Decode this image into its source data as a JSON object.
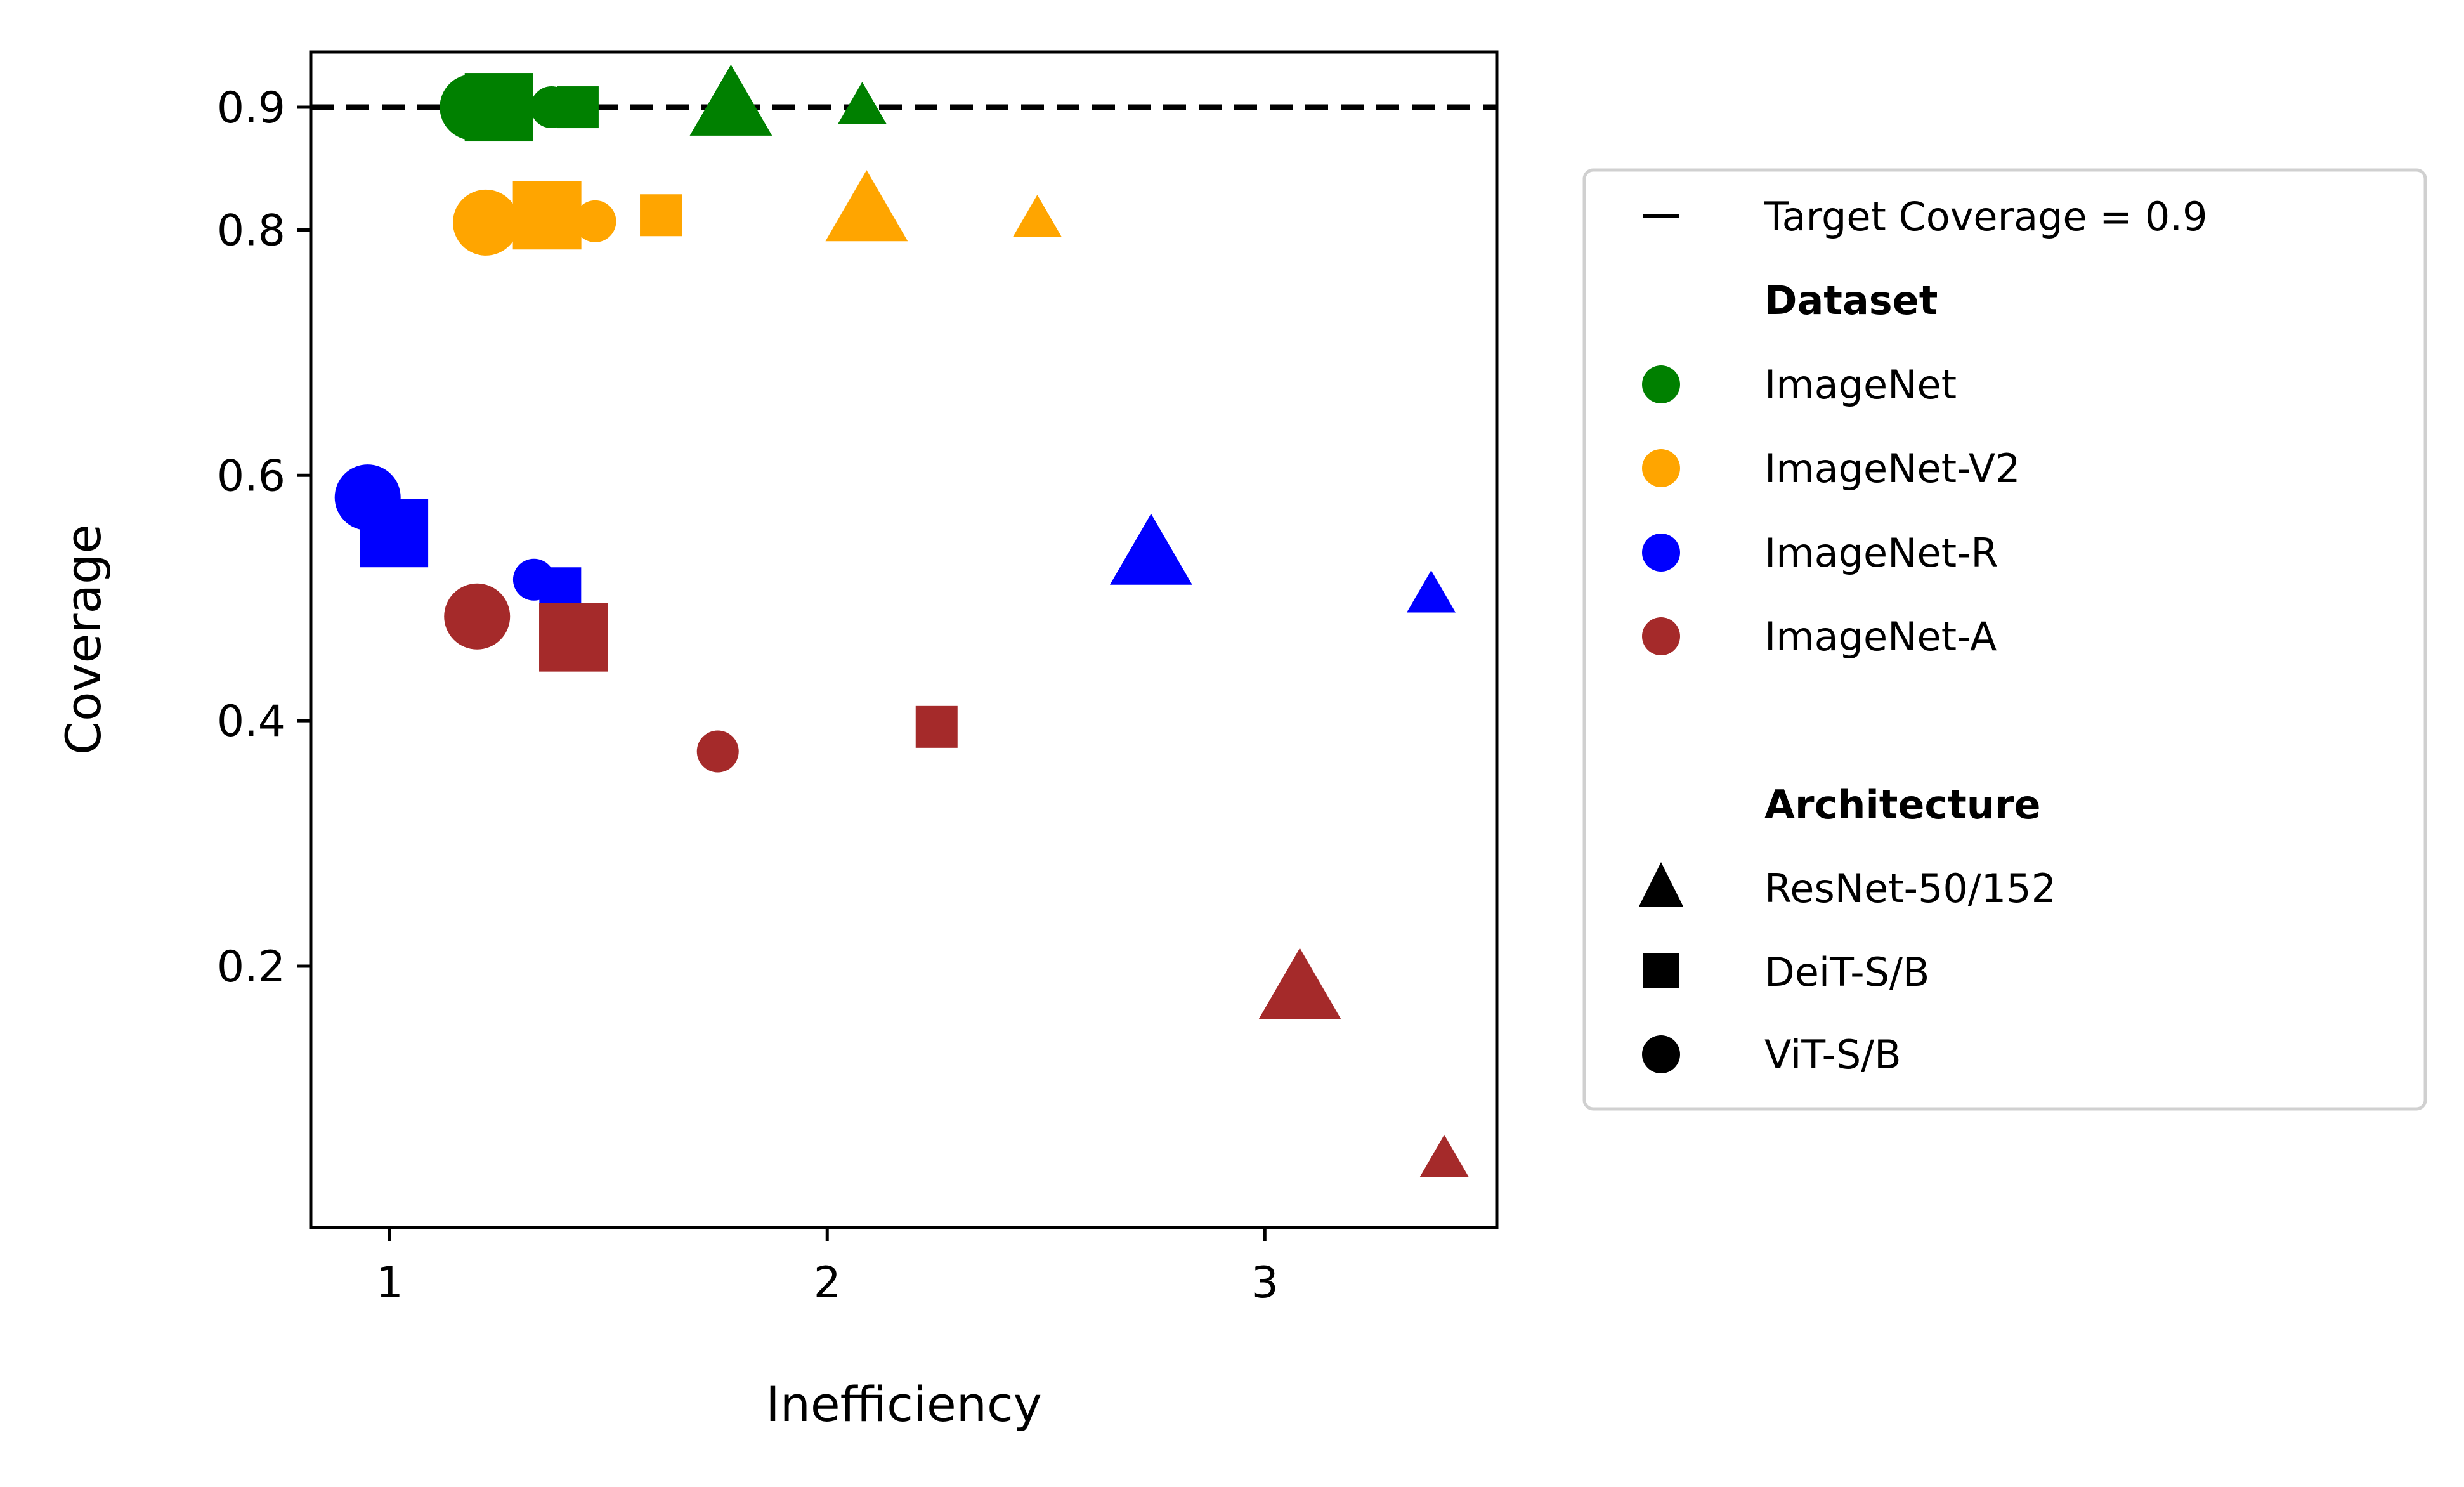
{
  "chart_data": {
    "type": "scatter",
    "title": "",
    "xlabel": "Inefficiency",
    "ylabel": "Coverage",
    "xlim": [
      0.82,
      3.53
    ],
    "ylim": [
      -0.013,
      0.945
    ],
    "x_ticks": [
      1,
      2,
      3
    ],
    "x_tick_labels": [
      "1",
      "2",
      "3"
    ],
    "y_ticks": [
      0.2,
      0.4,
      0.6,
      0.8,
      0.9
    ],
    "y_tick_labels": [
      "0.2",
      "0.4",
      "0.6",
      "0.8",
      "0.9"
    ],
    "grid": false,
    "reference_line": {
      "y": 0.9,
      "style": "dashed",
      "color": "#000000",
      "label": "Target Coverage = 0.9"
    },
    "colors": {
      "ImageNet": "#008000",
      "ImageNet-V2": "#ffa500",
      "ImageNet-R": "#0000ff",
      "ImageNet-A": "#a52a2a"
    },
    "marker_shapes": {
      "ResNet-50/152": "triangle",
      "DeiT-S/B": "square",
      "ViT-S/B": "circle"
    },
    "points": [
      {
        "dataset": "ImageNet",
        "arch": "ViT-S/B",
        "variant": "large",
        "x": 1.19,
        "y": 0.9
      },
      {
        "dataset": "ImageNet",
        "arch": "DeiT-S/B",
        "variant": "large",
        "x": 1.25,
        "y": 0.9
      },
      {
        "dataset": "ImageNet",
        "arch": "ViT-S/B",
        "variant": "small",
        "x": 1.37,
        "y": 0.9
      },
      {
        "dataset": "ImageNet",
        "arch": "DeiT-S/B",
        "variant": "small",
        "x": 1.43,
        "y": 0.9
      },
      {
        "dataset": "ImageNet",
        "arch": "ResNet-50/152",
        "variant": "large",
        "x": 1.78,
        "y": 0.9
      },
      {
        "dataset": "ImageNet",
        "arch": "ResNet-50/152",
        "variant": "small",
        "x": 2.08,
        "y": 0.9
      },
      {
        "dataset": "ImageNet-V2",
        "arch": "ViT-S/B",
        "variant": "large",
        "x": 1.22,
        "y": 0.806
      },
      {
        "dataset": "ImageNet-V2",
        "arch": "DeiT-S/B",
        "variant": "large",
        "x": 1.36,
        "y": 0.812
      },
      {
        "dataset": "ImageNet-V2",
        "arch": "ViT-S/B",
        "variant": "small",
        "x": 1.47,
        "y": 0.807
      },
      {
        "dataset": "ImageNet-V2",
        "arch": "DeiT-S/B",
        "variant": "small",
        "x": 1.62,
        "y": 0.812
      },
      {
        "dataset": "ImageNet-V2",
        "arch": "ResNet-50/152",
        "variant": "large",
        "x": 2.09,
        "y": 0.814
      },
      {
        "dataset": "ImageNet-V2",
        "arch": "ResNet-50/152",
        "variant": "small",
        "x": 2.48,
        "y": 0.808
      },
      {
        "dataset": "ImageNet-R",
        "arch": "ViT-S/B",
        "variant": "large",
        "x": 0.95,
        "y": 0.582
      },
      {
        "dataset": "ImageNet-R",
        "arch": "DeiT-S/B",
        "variant": "large",
        "x": 1.01,
        "y": 0.553
      },
      {
        "dataset": "ImageNet-R",
        "arch": "ViT-S/B",
        "variant": "small",
        "x": 1.33,
        "y": 0.515
      },
      {
        "dataset": "ImageNet-R",
        "arch": "DeiT-S/B",
        "variant": "small",
        "x": 1.39,
        "y": 0.508
      },
      {
        "dataset": "ImageNet-R",
        "arch": "ResNet-50/152",
        "variant": "large",
        "x": 2.74,
        "y": 0.534
      },
      {
        "dataset": "ImageNet-R",
        "arch": "ResNet-50/152",
        "variant": "small",
        "x": 3.38,
        "y": 0.502
      },
      {
        "dataset": "ImageNet-A",
        "arch": "ViT-S/B",
        "variant": "large",
        "x": 1.2,
        "y": 0.485
      },
      {
        "dataset": "ImageNet-A",
        "arch": "DeiT-S/B",
        "variant": "large",
        "x": 1.42,
        "y": 0.468
      },
      {
        "dataset": "ImageNet-A",
        "arch": "ViT-S/B",
        "variant": "small",
        "x": 1.75,
        "y": 0.375
      },
      {
        "dataset": "ImageNet-A",
        "arch": "DeiT-S/B",
        "variant": "small",
        "x": 2.25,
        "y": 0.395
      },
      {
        "dataset": "ImageNet-A",
        "arch": "ResNet-50/152",
        "variant": "large",
        "x": 3.08,
        "y": 0.18
      },
      {
        "dataset": "ImageNet-A",
        "arch": "ResNet-50/152",
        "variant": "small",
        "x": 3.41,
        "y": 0.042
      }
    ],
    "legend": {
      "placement": "right",
      "target_entry": "Target Coverage = 0.9",
      "dataset_heading": "Dataset",
      "datasets": [
        "ImageNet",
        "ImageNet-V2",
        "ImageNet-R",
        "ImageNet-A"
      ],
      "architecture_heading": "Architecture",
      "architectures": [
        "ResNet-50/152",
        "DeiT-S/B",
        "ViT-S/B"
      ]
    }
  }
}
